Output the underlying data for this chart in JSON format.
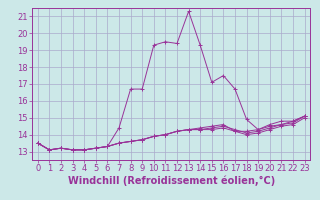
{
  "background_color": "#cce8e8",
  "grid_color": "#aaaacc",
  "line_color": "#993399",
  "xlabel": "Windchill (Refroidissement éolien,°C)",
  "xlabel_fontsize": 7,
  "tick_fontsize": 6,
  "xlim": [
    -0.5,
    23.5
  ],
  "ylim": [
    12.5,
    21.5
  ],
  "xticks": [
    0,
    1,
    2,
    3,
    4,
    5,
    6,
    7,
    8,
    9,
    10,
    11,
    12,
    13,
    14,
    15,
    16,
    17,
    18,
    19,
    20,
    21,
    22,
    23
  ],
  "yticks": [
    13,
    14,
    15,
    16,
    17,
    18,
    19,
    20,
    21
  ],
  "series": [
    [
      13.5,
      13.1,
      13.2,
      13.1,
      13.1,
      13.2,
      13.3,
      14.4,
      16.7,
      16.7,
      19.3,
      19.5,
      19.4,
      21.3,
      19.3,
      17.1,
      17.5,
      16.7,
      14.9,
      14.3,
      14.6,
      14.8,
      14.8,
      15.1
    ],
    [
      13.5,
      13.1,
      13.2,
      13.1,
      13.1,
      13.2,
      13.3,
      13.5,
      13.6,
      13.7,
      13.9,
      14.0,
      14.2,
      14.3,
      14.4,
      14.5,
      14.6,
      14.2,
      14.2,
      14.3,
      14.5,
      14.6,
      14.7,
      15.1
    ],
    [
      13.5,
      13.1,
      13.2,
      13.1,
      13.1,
      13.2,
      13.3,
      13.5,
      13.6,
      13.7,
      13.9,
      14.0,
      14.2,
      14.3,
      14.3,
      14.3,
      14.4,
      14.2,
      14.0,
      14.1,
      14.3,
      14.5,
      14.6,
      15.0
    ],
    [
      13.5,
      13.1,
      13.2,
      13.1,
      13.1,
      13.2,
      13.3,
      13.5,
      13.6,
      13.7,
      13.9,
      14.0,
      14.2,
      14.3,
      14.3,
      14.4,
      14.5,
      14.3,
      14.1,
      14.2,
      14.4,
      14.6,
      14.8,
      15.1
    ]
  ]
}
